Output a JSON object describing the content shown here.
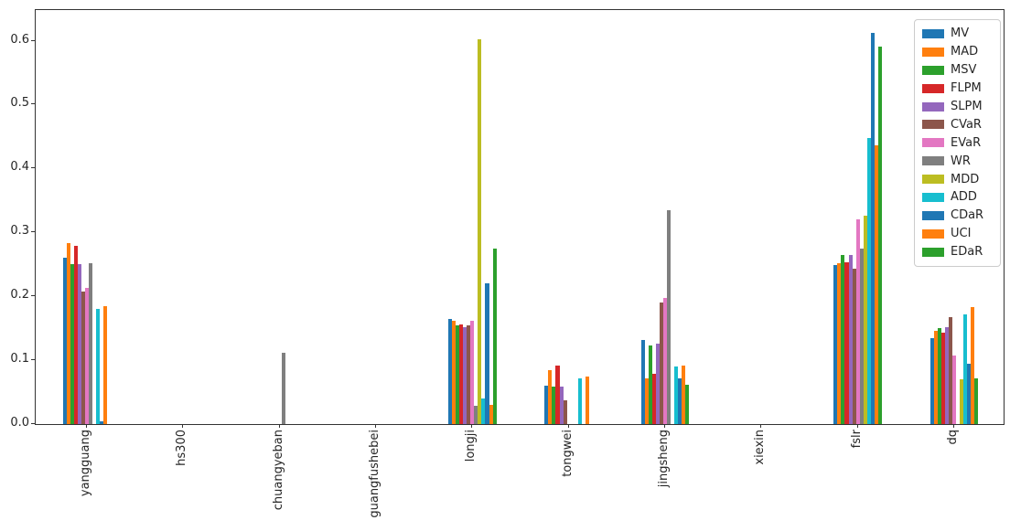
{
  "figure": {
    "background": "#ffffff",
    "spine_color": "#333333",
    "tick_label_color": "#262626"
  },
  "chart_data": {
    "type": "bar",
    "title": "",
    "xlabel": "",
    "ylabel": "",
    "grid": false,
    "legend_position": "upper right",
    "x_tick_rotation": 90,
    "ylim": [
      0,
      0.648
    ],
    "yticks": [
      0.0,
      0.1,
      0.2,
      0.3,
      0.4,
      0.5,
      0.6
    ],
    "ytick_labels": [
      "0.0",
      "0.1",
      "0.2",
      "0.3",
      "0.4",
      "0.5",
      "0.6"
    ],
    "categories": [
      "yangguang",
      "hs300",
      "chuangyeban",
      "guangfushebei",
      "longji",
      "tongwei",
      "jingsheng",
      "xiexin",
      "fslr",
      "dq"
    ],
    "series": [
      {
        "name": "MV",
        "color": "#1f77b4",
        "values": [
          0.26,
          0,
          0,
          0,
          0.164,
          0.06,
          0.132,
          0,
          0.249,
          0.134
        ]
      },
      {
        "name": "MAD",
        "color": "#ff7f0e",
        "values": [
          0.283,
          0,
          0,
          0,
          0.162,
          0.084,
          0.072,
          0,
          0.252,
          0.146
        ]
      },
      {
        "name": "MSV",
        "color": "#2ca02c",
        "values": [
          0.251,
          0,
          0,
          0,
          0.154,
          0.059,
          0.123,
          0,
          0.264,
          0.15
        ]
      },
      {
        "name": "FLPM",
        "color": "#d62728",
        "values": [
          0.279,
          0,
          0,
          0,
          0.156,
          0.092,
          0.078,
          0,
          0.253,
          0.143
        ]
      },
      {
        "name": "SLPM",
        "color": "#9467bd",
        "values": [
          0.25,
          0,
          0,
          0,
          0.151,
          0.058,
          0.126,
          0,
          0.265,
          0.152
        ]
      },
      {
        "name": "CVaR",
        "color": "#8c564b",
        "values": [
          0.207,
          0,
          0,
          0,
          0.155,
          0.037,
          0.19,
          0,
          0.243,
          0.167
        ]
      },
      {
        "name": "EVaR",
        "color": "#e377c2",
        "values": [
          0.213,
          0,
          0,
          0,
          0.162,
          0,
          0.197,
          0,
          0.321,
          0.107
        ]
      },
      {
        "name": "WR",
        "color": "#7f7f7f",
        "values": [
          0.252,
          0,
          0.112,
          0,
          0.028,
          0,
          0.335,
          0,
          0.274,
          0
        ]
      },
      {
        "name": "MDD",
        "color": "#bcbd22",
        "values": [
          0,
          0,
          0,
          0,
          0.602,
          0,
          0,
          0,
          0.326,
          0.07
        ]
      },
      {
        "name": "ADD",
        "color": "#17becf",
        "values": [
          0.18,
          0,
          0,
          0,
          0.04,
          0.072,
          0.09,
          0,
          0.448,
          0.172
        ]
      },
      {
        "name": "CDaR",
        "color": "#1f77b4",
        "values": [
          0.005,
          0,
          0,
          0,
          0.221,
          0,
          0.072,
          0,
          0.612,
          0.095
        ]
      },
      {
        "name": "UCI",
        "color": "#ff7f0e",
        "values": [
          0.184,
          0,
          0,
          0,
          0.03,
          0.074,
          0.092,
          0,
          0.437,
          0.183
        ]
      },
      {
        "name": "EDaR",
        "color": "#2ca02c",
        "values": [
          0,
          0,
          0,
          0,
          0.275,
          0,
          0.062,
          0,
          0.591,
          0.072
        ]
      }
    ]
  }
}
